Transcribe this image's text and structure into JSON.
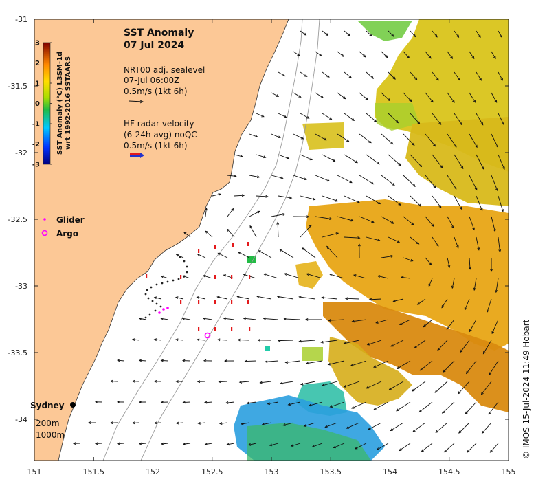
{
  "map": {
    "title_line1": "SST Anomaly",
    "title_line2": "07 Jul 2024",
    "sealevel": {
      "line1": "NRT00 adj. sealevel",
      "line2": "07-Jul 06:00Z",
      "line3": "0.5m/s (1kt 6h)"
    },
    "hfradar": {
      "line1": "HF radar velocity",
      "line2": "(6-24h avg) noQC",
      "line3": "0.5m/s (1kt 6h)"
    },
    "legend": {
      "glider": "Glider",
      "argo": "Argo"
    },
    "places": {
      "sydney": "Sydney",
      "isobath_200": "200m",
      "isobath_1000": "1000m"
    },
    "credit": "© IMOS 15-Jul-2024 11:49 Hobart",
    "colorbar": {
      "label_line1": "SST Anomaly (°C) L3SM-1d",
      "label_line2": "wrt 1992-2016 SSTAARS",
      "ticks": [
        "3",
        "2",
        "1",
        "0",
        "-1",
        "-2",
        "-3"
      ]
    },
    "x_ticks": [
      "151",
      "151.5",
      "152",
      "152.5",
      "153",
      "153.5",
      "154",
      "154.5",
      "155"
    ],
    "y_ticks": [
      "-31",
      "-31.5",
      "-32",
      "-32.5",
      "-33",
      "-33.5",
      "-34"
    ],
    "colors": {
      "land": "#fcc896",
      "ocean": "#ffffff",
      "warm": "#e89a10",
      "cool": "#1e9be0",
      "glider": "#ff00ff",
      "hf": "#e31a1c"
    }
  }
}
